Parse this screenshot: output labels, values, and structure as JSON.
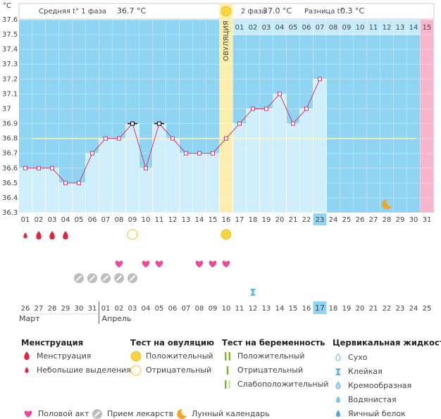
{
  "chart_data": {
    "type": "line",
    "y_unit": "°C",
    "header": {
      "phase1_label": "Средняя t° 1 фаза",
      "phase1_value": "36.7 °C",
      "phase2_label": "2 фаза",
      "phase2_value": "37.0 °C",
      "diff_label": "Разница t°",
      "diff_value": "0.3 °C"
    },
    "ovulation_label": "ОВУЛЯЦИЯ",
    "ovulation_day": "16",
    "categories": [
      "01",
      "02",
      "03",
      "04",
      "05",
      "06",
      "07",
      "08",
      "09",
      "10",
      "11",
      "12",
      "13",
      "14",
      "15",
      "16",
      "17",
      "18",
      "19",
      "20",
      "21",
      "22",
      "23",
      "24",
      "25",
      "26",
      "27",
      "28",
      "29",
      "30",
      "31"
    ],
    "series": [
      {
        "name": "t°",
        "color": "#d8336d",
        "values": [
          36.6,
          36.6,
          36.6,
          36.5,
          36.5,
          36.7,
          36.8,
          36.8,
          36.9,
          36.6,
          36.9,
          36.8,
          36.7,
          36.7,
          36.7,
          36.8,
          36.9,
          37.0,
          37.0,
          37.1,
          36.9,
          37.0,
          37.2,
          null,
          null,
          null,
          null,
          null,
          null,
          null,
          null
        ]
      }
    ],
    "excluded_days": [
      "09",
      "11"
    ],
    "coverline": 36.8,
    "ylim": [
      36.3,
      37.6
    ],
    "yticks": [
      36.3,
      36.4,
      36.5,
      36.6,
      36.7,
      36.8,
      36.9,
      37,
      37.1,
      37.2,
      37.3,
      37.4,
      37.5,
      37.6
    ],
    "grid": true,
    "cycle_days": [
      "01",
      "02",
      "03",
      "04",
      "05",
      "06",
      "07",
      "08",
      "09",
      "10",
      "11",
      "12",
      "13",
      "14",
      "15"
    ],
    "today": "23",
    "dates": [
      "26",
      "27",
      "28",
      "29",
      "30",
      "31",
      "01",
      "02",
      "03",
      "04",
      "05",
      "06",
      "07",
      "08",
      "09",
      "10",
      "11",
      "12",
      "13",
      "14",
      "15",
      "16",
      "17",
      "18",
      "19",
      "20",
      "21",
      "22",
      "23",
      "24",
      "25"
    ],
    "weekends": [
      "28",
      "29",
      "04",
      "05",
      "11",
      "12",
      "18",
      "19",
      "25"
    ],
    "weekend_color": "#d0021b",
    "months": [
      "Март",
      "Апрель"
    ],
    "symbols": {
      "menstruation": {
        "heavy": [
          "02",
          "03",
          "04"
        ],
        "light": [
          "01"
        ]
      },
      "ovulation_test": {
        "positive": [
          "16"
        ],
        "negative": [
          "09"
        ]
      },
      "sex": [
        "08",
        "10",
        "11",
        "14",
        "15",
        "16"
      ],
      "medication": [
        "05",
        "06",
        "07",
        "08",
        "09"
      ],
      "cervical_fluid": {
        "sticky": [
          "18"
        ]
      },
      "lunar": [
        "28"
      ]
    },
    "legend": [
      {
        "title": "Менструация",
        "items": [
          "Менструация",
          "Небольшие выделения"
        ]
      },
      {
        "title": "Тест на овуляцию",
        "items": [
          "Положительный",
          "Отрицательный"
        ]
      },
      {
        "title": "Тест на беременность",
        "items": [
          "Положительный",
          "Отрицательный",
          "Слабоположительный"
        ]
      },
      {
        "title": "Цервикальная жидкость",
        "items": [
          "Сухо",
          "Клейкая",
          "Кремообразная",
          "Водянистая",
          "Яичный белок"
        ]
      }
    ],
    "legend_other": [
      "Половой акт",
      "Прием лекарств",
      "Лунный календарь"
    ]
  }
}
